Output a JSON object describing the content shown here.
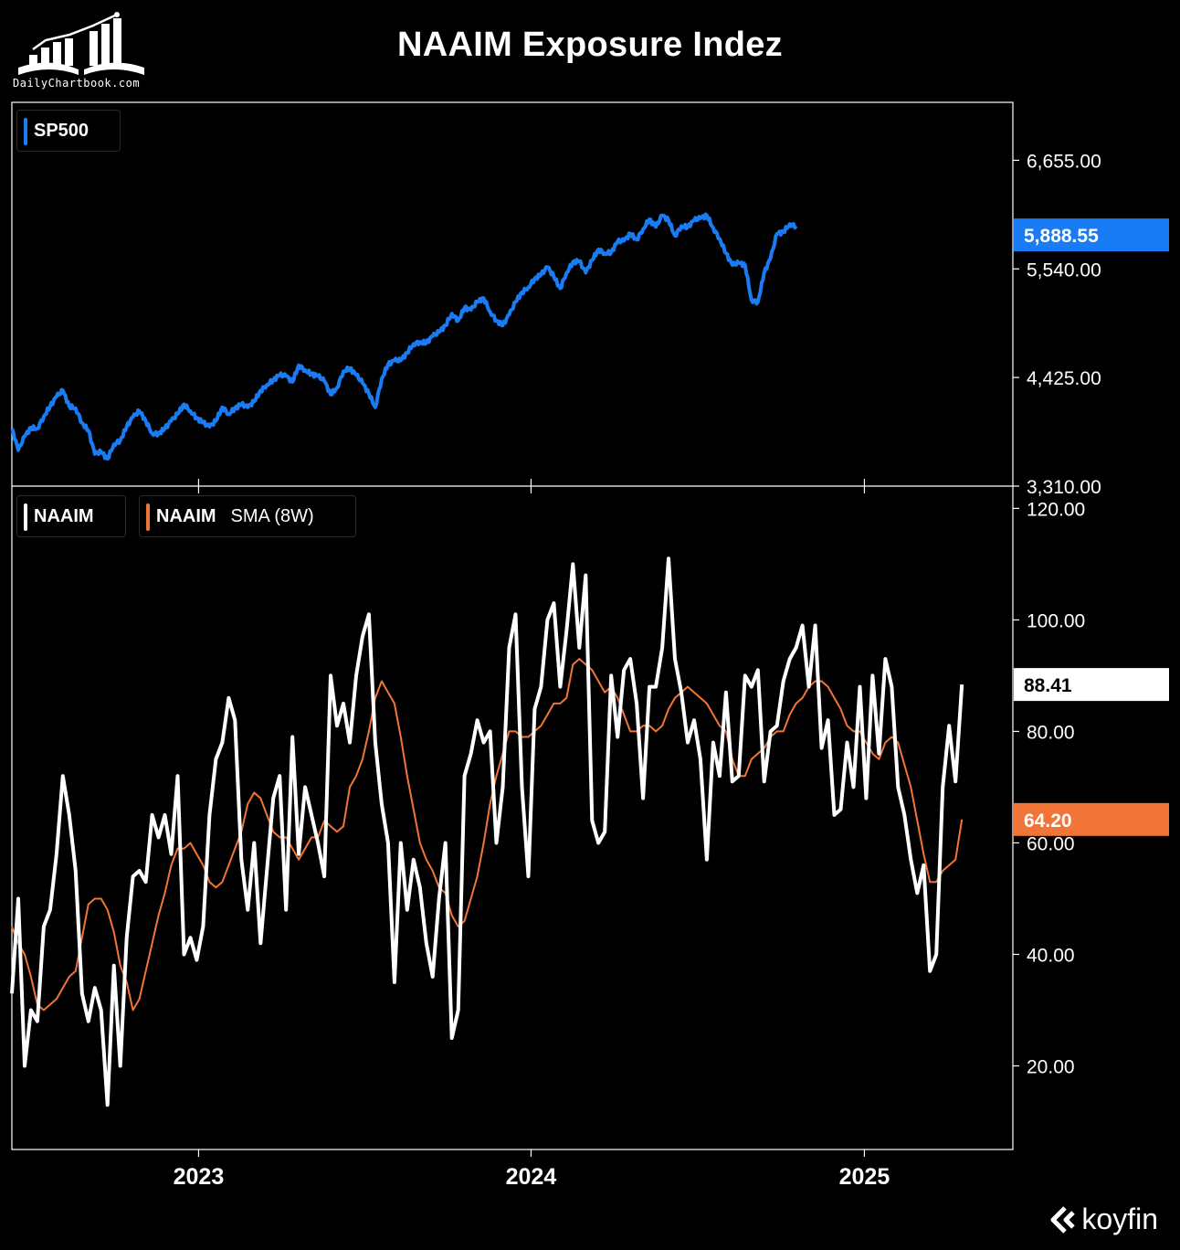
{
  "header": {
    "title": "NAAIM Exposure Indez",
    "logo_text": "DailyChartbook.com",
    "brand": "koyfin"
  },
  "colors": {
    "sp500": "#1a7cf5",
    "naaim": "#ffffff",
    "sma": "#f07536",
    "background": "#000000"
  },
  "chart_data": [
    {
      "type": "line",
      "panel": "top",
      "series": [
        {
          "name": "SP500",
          "color": "#1a7cf5"
        }
      ],
      "y_ticks": [
        "6,655.00",
        "5,540.00",
        "4,425.00",
        "3,310.00"
      ],
      "y_tick_values": [
        6655,
        5540,
        4425,
        3310
      ],
      "ylim": [
        3310,
        7250
      ],
      "last_value_label": "5,888.55",
      "last_value": 5888.55,
      "x_tick_labels": [
        "2023",
        "2024",
        "2025"
      ],
      "x_ticks_dates": [
        "2023-01-01",
        "2024-01-01",
        "2025-01-01"
      ],
      "xlim": [
        "2022-06-10",
        "2025-06-13"
      ],
      "sp500_weekly": {
        "start": "2022-06-10",
        "interval_days": 7,
        "values": [
          3900,
          3680,
          3820,
          3910,
          3900,
          4025,
          4130,
          4230,
          4290,
          4130,
          4110,
          3960,
          3880,
          3640,
          3660,
          3590,
          3740,
          3780,
          3920,
          4020,
          4080,
          3980,
          3850,
          3850,
          3900,
          3980,
          4050,
          4150,
          4080,
          4010,
          3960,
          3920,
          3980,
          4120,
          4050,
          4110,
          4150,
          4120,
          4180,
          4290,
          4350,
          4400,
          4450,
          4440,
          4380,
          4550,
          4500,
          4460,
          4440,
          4390,
          4250,
          4320,
          4490,
          4520,
          4450,
          4370,
          4260,
          4120,
          4410,
          4560,
          4600,
          4600,
          4680,
          4770,
          4790,
          4780,
          4850,
          4890,
          4960,
          5080,
          5010,
          5140,
          5120,
          5200,
          5240,
          5100,
          5010,
          4960,
          5070,
          5200,
          5300,
          5350,
          5440,
          5480,
          5560,
          5460,
          5340,
          5500,
          5610,
          5620,
          5500,
          5630,
          5740,
          5700,
          5710,
          5820,
          5830,
          5900,
          5840,
          5950,
          6050,
          5970,
          6090,
          6040,
          5880,
          5980,
          5970,
          6040,
          6060,
          6090,
          5960,
          5850,
          5700,
          5580,
          5600,
          5580,
          5220,
          5200,
          5500,
          5650,
          5900,
          5920,
          6000,
          5980
        ]
      }
    },
    {
      "type": "line",
      "panel": "bottom",
      "series": [
        {
          "name": "NAAIM",
          "color": "#ffffff"
        },
        {
          "name": "NAAIM",
          "name_suffix": "SMA (8W)",
          "color": "#f07536"
        }
      ],
      "y_ticks": [
        "120.00",
        "100.00",
        "80.00",
        "60.00",
        "40.00",
        "20.00"
      ],
      "y_tick_values": [
        120,
        100,
        80,
        60,
        40,
        20
      ],
      "ylim": [
        5,
        124
      ],
      "last_value_labels": {
        "naaim": "88.41",
        "sma": "64.20"
      },
      "last_values": {
        "naaim": 88.41,
        "sma": 64.2
      },
      "x_tick_labels": [
        "2023",
        "2024",
        "2025"
      ],
      "xlim": [
        "2022-06-10",
        "2025-06-13"
      ],
      "naaim_weekly": {
        "start": "2022-06-10",
        "interval_days": 7,
        "values": [
          33,
          50,
          20,
          30,
          28,
          45,
          48,
          58,
          72,
          65,
          55,
          33,
          28,
          34,
          30,
          13,
          38,
          20,
          43,
          54,
          55,
          53,
          65,
          61,
          65,
          58,
          72,
          40,
          43,
          39,
          45,
          65,
          75,
          78,
          86,
          82,
          57,
          48,
          60,
          42,
          55,
          68,
          72,
          48,
          79,
          58,
          70,
          65,
          60,
          54,
          90,
          81,
          85,
          78,
          90,
          97,
          101,
          78,
          67,
          60,
          35,
          60,
          48,
          57,
          52,
          42,
          36,
          50,
          60,
          25,
          30,
          72,
          76,
          82,
          78,
          80,
          60,
          70,
          95,
          101,
          70,
          54,
          84,
          88,
          100,
          103,
          88,
          98,
          110,
          95,
          108,
          64,
          60,
          62,
          90,
          79,
          91,
          93,
          85,
          68,
          88,
          88,
          95,
          111,
          93,
          87,
          78,
          82,
          75,
          57,
          78,
          72,
          87,
          71,
          72,
          90,
          88,
          91,
          71,
          80,
          81,
          89,
          93,
          95,
          99,
          88,
          99,
          77,
          82,
          65,
          66,
          78,
          70,
          88,
          68,
          90,
          76,
          93,
          88,
          70,
          65,
          57,
          51,
          56,
          37,
          40,
          70,
          81,
          71,
          88.41
        ]
      },
      "sma_weekly": {
        "start": "2022-06-10",
        "interval_days": 7,
        "values": [
          45,
          42,
          40,
          36,
          31,
          30,
          31,
          32,
          34,
          36,
          37,
          43,
          49,
          50,
          50,
          48,
          44,
          38,
          35,
          30,
          32,
          37,
          42,
          47,
          51,
          56,
          59,
          59,
          60,
          58,
          56,
          53,
          52,
          53,
          56,
          59,
          62,
          67,
          69,
          68,
          65,
          62,
          61,
          61,
          59,
          57,
          59,
          61,
          61,
          64,
          63,
          62,
          63,
          70,
          72,
          75,
          80,
          86,
          89,
          87,
          85,
          79,
          72,
          66,
          60,
          57,
          55,
          52,
          51,
          47,
          45,
          46,
          50,
          54,
          60,
          67,
          72,
          76,
          80,
          80,
          79,
          79,
          80,
          81,
          83,
          85,
          85,
          86,
          92,
          93,
          92,
          91,
          89,
          87,
          88,
          86,
          83,
          80,
          80,
          81,
          81,
          80,
          81,
          84,
          86,
          87,
          88,
          87,
          86,
          85,
          83,
          81,
          80,
          75,
          72,
          72,
          75,
          76,
          77,
          79,
          80,
          80,
          83,
          85,
          86,
          88,
          89,
          89,
          88,
          86,
          84,
          81,
          80,
          80,
          78,
          76,
          75,
          78,
          79,
          78,
          74,
          70,
          64,
          58,
          53,
          53,
          55,
          56,
          57,
          64.2
        ]
      }
    }
  ]
}
